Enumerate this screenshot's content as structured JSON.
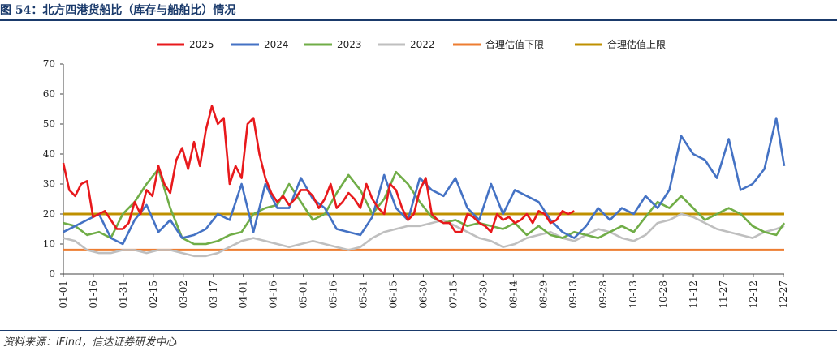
{
  "header": {
    "title": "图 54：北方四港货船比（库存与船舶比）情况"
  },
  "footer": {
    "source": "资料来源：iFind，信达证券研发中心"
  },
  "colors": {
    "s2025": "#e8191c",
    "s2024": "#4472c4",
    "s2023": "#70ad47",
    "s2022": "#bfbfbf",
    "lower": "#ed7d31",
    "upper": "#bf9000"
  },
  "chart_data": {
    "type": "line",
    "title": "",
    "ylim": [
      0,
      70
    ],
    "yticks": [
      0,
      10,
      20,
      30,
      40,
      50,
      60,
      70
    ],
    "xlim": [
      1,
      365
    ],
    "xticks": [
      "01-01",
      "01-16",
      "01-31",
      "02-15",
      "03-02",
      "03-17",
      "04-01",
      "04-16",
      "05-01",
      "05-16",
      "05-31",
      "06-15",
      "06-30",
      "07-15",
      "07-30",
      "08-14",
      "08-29",
      "09-13",
      "09-28",
      "10-13",
      "10-28",
      "11-12",
      "11-27",
      "12-12",
      "12-27"
    ],
    "legend": [
      "2025",
      "2024",
      "2023",
      "2022",
      "合理估值下限",
      "合理估值上限"
    ],
    "legend_position": "top",
    "series": [
      {
        "name": "2025",
        "color_key": "s2025",
        "x": [
          1,
          4,
          7,
          10,
          13,
          16,
          19,
          22,
          25,
          28,
          31,
          34,
          37,
          40,
          43,
          46,
          49,
          52,
          55,
          58,
          61,
          64,
          67,
          70,
          73,
          76,
          79,
          82,
          85,
          88,
          91,
          94,
          97,
          100,
          103,
          106,
          109,
          112,
          115,
          118,
          121,
          124,
          127,
          130,
          133,
          136,
          139,
          142,
          145,
          148,
          151,
          154,
          157,
          160,
          163,
          166,
          169,
          172,
          175,
          178,
          181,
          184,
          187,
          190,
          193,
          196,
          199,
          202,
          205,
          208,
          211,
          214,
          217,
          220,
          223,
          226,
          229,
          232,
          235,
          238,
          241,
          244,
          247,
          250,
          253,
          256,
          259
        ],
        "y": [
          37,
          28,
          26,
          30,
          31,
          19,
          20,
          21,
          18,
          15,
          15,
          17,
          24,
          20,
          28,
          26,
          36,
          30,
          27,
          38,
          42,
          35,
          44,
          36,
          48,
          56,
          50,
          52,
          30,
          36,
          32,
          50,
          52,
          40,
          32,
          27,
          24,
          26,
          23,
          25,
          28,
          28,
          26,
          22,
          25,
          30,
          22,
          24,
          27,
          25,
          22,
          30,
          25,
          22,
          20,
          30,
          28,
          22,
          18,
          20,
          28,
          32,
          20,
          18,
          17,
          17,
          14,
          14,
          20,
          19,
          17,
          16,
          14,
          20,
          18,
          19,
          17,
          18,
          20,
          17,
          21,
          20,
          17,
          18,
          21,
          20,
          21
        ]
      },
      {
        "name": "2024",
        "color_key": "s2024",
        "x": [
          1,
          7,
          13,
          19,
          25,
          31,
          37,
          43,
          49,
          55,
          61,
          67,
          73,
          79,
          85,
          91,
          97,
          103,
          109,
          115,
          121,
          127,
          133,
          139,
          145,
          151,
          157,
          163,
          169,
          175,
          181,
          187,
          193,
          199,
          205,
          211,
          217,
          223,
          229,
          235,
          241,
          247,
          253,
          259,
          265,
          271,
          277,
          283,
          289,
          295,
          301,
          307,
          313,
          319,
          325,
          331,
          337,
          343,
          349,
          355,
          361,
          365
        ],
        "y": [
          14,
          16,
          18,
          20,
          12,
          10,
          18,
          23,
          14,
          18,
          12,
          13,
          15,
          20,
          18,
          30,
          14,
          30,
          22,
          22,
          32,
          25,
          22,
          15,
          14,
          13,
          19,
          33,
          22,
          18,
          32,
          28,
          26,
          32,
          22,
          18,
          30,
          20,
          28,
          26,
          24,
          18,
          14,
          12,
          16,
          22,
          18,
          22,
          20,
          26,
          22,
          28,
          46,
          40,
          38,
          32,
          45,
          28,
          30,
          35,
          52,
          36
        ]
      },
      {
        "name": "2023",
        "color_key": "s2023",
        "x": [
          1,
          7,
          13,
          19,
          25,
          31,
          37,
          43,
          49,
          55,
          61,
          67,
          73,
          79,
          85,
          91,
          97,
          103,
          109,
          115,
          121,
          127,
          133,
          139,
          145,
          151,
          157,
          163,
          169,
          175,
          181,
          187,
          193,
          199,
          205,
          211,
          217,
          223,
          229,
          235,
          241,
          247,
          253,
          259,
          265,
          271,
          277,
          283,
          289,
          295,
          301,
          307,
          313,
          319,
          325,
          331,
          337,
          343,
          349,
          355,
          361,
          365
        ],
        "y": [
          17,
          16,
          13,
          14,
          12,
          20,
          24,
          30,
          35,
          22,
          12,
          10,
          10,
          11,
          13,
          14,
          20,
          22,
          23,
          30,
          24,
          18,
          20,
          27,
          33,
          28,
          20,
          25,
          34,
          30,
          24,
          19,
          17,
          18,
          16,
          17,
          16,
          15,
          17,
          13,
          16,
          13,
          12,
          14,
          13,
          12,
          14,
          16,
          14,
          19,
          24,
          22,
          26,
          22,
          18,
          20,
          22,
          20,
          16,
          14,
          13,
          17
        ]
      },
      {
        "name": "2022",
        "color_key": "s2022",
        "x": [
          1,
          7,
          13,
          19,
          25,
          31,
          37,
          43,
          49,
          55,
          61,
          67,
          73,
          79,
          85,
          91,
          97,
          103,
          109,
          115,
          121,
          127,
          133,
          139,
          145,
          151,
          157,
          163,
          169,
          175,
          181,
          187,
          193,
          199,
          205,
          211,
          217,
          223,
          229,
          235,
          241,
          247,
          253,
          259,
          265,
          271,
          277,
          283,
          289,
          295,
          301,
          307,
          313,
          319,
          325,
          331,
          337,
          343,
          349,
          355,
          361,
          365
        ],
        "y": [
          12,
          11,
          8,
          7,
          7,
          8,
          8,
          7,
          8,
          8,
          7,
          6,
          6,
          7,
          9,
          11,
          12,
          11,
          10,
          9,
          10,
          11,
          10,
          9,
          8,
          9,
          12,
          14,
          15,
          16,
          16,
          17,
          18,
          16,
          14,
          12,
          11,
          9,
          10,
          12,
          13,
          14,
          12,
          11,
          13,
          15,
          14,
          12,
          11,
          13,
          17,
          18,
          20,
          19,
          17,
          15,
          14,
          13,
          12,
          14,
          15,
          16
        ]
      }
    ],
    "hlines": [
      {
        "name": "合理估值下限",
        "value": 8,
        "color_key": "lower"
      },
      {
        "name": "合理估值上限",
        "value": 20,
        "color_key": "upper"
      }
    ]
  }
}
